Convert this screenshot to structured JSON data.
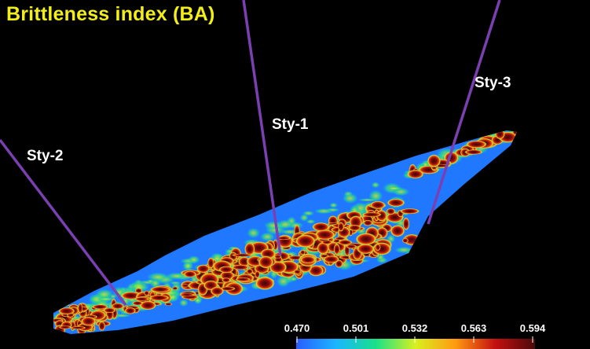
{
  "title": "Brittleness index (BA)",
  "wells": [
    {
      "name": "Sty-2"
    },
    {
      "name": "Sty-1"
    },
    {
      "name": "Sty-3"
    }
  ],
  "colorbar": {
    "ticks": [
      "0.470",
      "0.501",
      "0.532",
      "0.563",
      "0.594"
    ],
    "colors": [
      "#2a5cff",
      "#19b6ff",
      "#19e08a",
      "#d8f020",
      "#ff9a10",
      "#c41010",
      "#4a0a0a"
    ]
  },
  "colors": {
    "title": "#f2ee1a",
    "well_path": "#7a3fb0",
    "label": "#ffffff",
    "background": "#000000"
  }
}
